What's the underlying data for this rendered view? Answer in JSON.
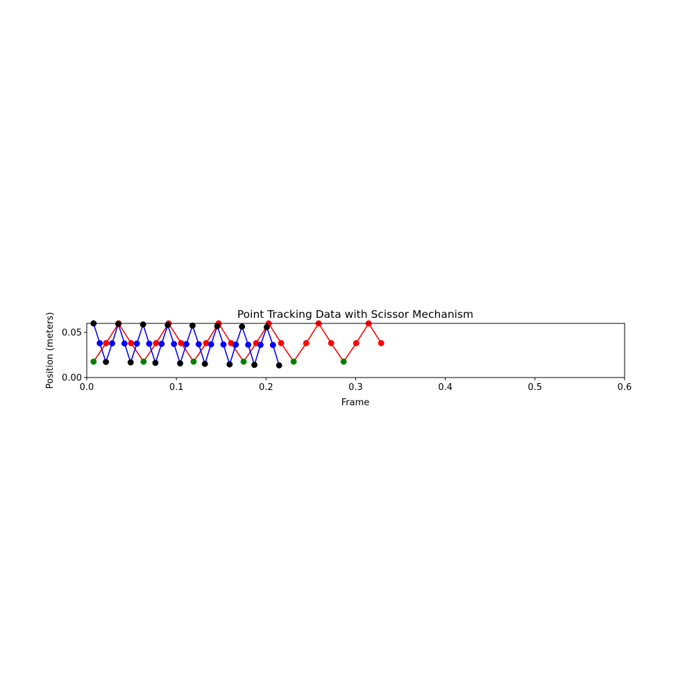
{
  "chart_data": {
    "type": "line",
    "title": "Point Tracking Data with Scissor Mechanism",
    "xlabel": "Frame",
    "ylabel": "Position (meters)",
    "xlim": [
      0,
      0.6
    ],
    "ylim": [
      0,
      0.06
    ],
    "xticks": [
      "0.0",
      "0.1",
      "0.2",
      "0.3",
      "0.4",
      "0.5",
      "0.6"
    ],
    "yticks": [
      "0.00",
      "0.05"
    ],
    "grid": false,
    "series": [
      {
        "color": "#ff0000",
        "marker_colors": [
          "#008000",
          "#ff0000",
          "#ff0000"
        ],
        "x_start": 0.0076,
        "x_step": 0.01395,
        "count": 24,
        "levels": [
          0.0176,
          0.0381,
          0.06
        ],
        "pattern": [
          0,
          1,
          2,
          1
        ]
      },
      {
        "color": "#0000ff",
        "marker_colors": [
          "#000000",
          "#0000ff",
          "#000000"
        ],
        "x_start": 0.0076,
        "x_step": 0.0069,
        "count": 31,
        "levels_start": [
          0.0176,
          0.0381,
          0.06
        ],
        "levels_end": [
          0.0135,
          0.036,
          0.0555
        ],
        "pattern": [
          2,
          1,
          0,
          1
        ]
      }
    ]
  }
}
